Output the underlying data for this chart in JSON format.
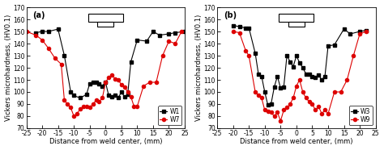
{
  "panel_a": {
    "label": "(a)",
    "W1_x": [
      -22,
      -20,
      -18,
      -15,
      -13,
      -11,
      -10,
      -8,
      -6,
      -5,
      -4,
      -3,
      -2,
      -1,
      0,
      1,
      2,
      3,
      4,
      5,
      6,
      7,
      8,
      10,
      13,
      15,
      17,
      20,
      22,
      25
    ],
    "W1_y": [
      149,
      150,
      150,
      152,
      130,
      100,
      97,
      95,
      98,
      107,
      108,
      108,
      107,
      105,
      108,
      97,
      96,
      97,
      95,
      100,
      96,
      98,
      125,
      143,
      142,
      150,
      147,
      148,
      149,
      150
    ],
    "W7_x": [
      -25,
      -22,
      -20,
      -18,
      -16,
      -14,
      -13,
      -12,
      -11,
      -10,
      -9,
      -8,
      -7,
      -6,
      -5,
      -4,
      -3,
      -2,
      -1,
      0,
      1,
      2,
      3,
      4,
      5,
      6,
      7,
      8,
      9,
      10,
      12,
      14,
      16,
      18,
      20,
      22,
      24
    ],
    "W7_y": [
      150,
      147,
      143,
      136,
      128,
      123,
      93,
      90,
      87,
      80,
      82,
      86,
      88,
      88,
      87,
      90,
      93,
      92,
      95,
      108,
      112,
      114,
      111,
      110,
      106,
      104,
      100,
      96,
      88,
      88,
      105,
      108,
      108,
      130,
      142,
      140,
      150
    ],
    "legend": [
      "W1",
      "W7"
    ],
    "xlabel": "Distance from weld center, (mm)",
    "ylabel": "Vickers microhardness, (HV0.1)"
  },
  "panel_b": {
    "label": "(b)",
    "W3_x": [
      -20,
      -18,
      -16,
      -15,
      -13,
      -12,
      -11,
      -10,
      -9,
      -8,
      -7,
      -6,
      -5,
      -4,
      -3,
      -2,
      -1,
      0,
      1,
      2,
      3,
      4,
      5,
      6,
      7,
      8,
      9,
      10,
      12,
      15,
      17,
      20,
      22
    ],
    "W3_y": [
      155,
      154,
      153,
      153,
      132,
      115,
      113,
      100,
      89,
      90,
      104,
      113,
      103,
      104,
      130,
      125,
      121,
      130,
      124,
      120,
      115,
      115,
      113,
      112,
      114,
      110,
      113,
      138,
      139,
      152,
      148,
      150,
      151
    ],
    "W9_x": [
      -20,
      -18,
      -16,
      -15,
      -13,
      -12,
      -11,
      -10,
      -9,
      -8,
      -7,
      -6,
      -5,
      -4,
      -3,
      -2,
      -1,
      0,
      1,
      2,
      3,
      4,
      5,
      6,
      7,
      8,
      9,
      10,
      12,
      14,
      16,
      18,
      20,
      22
    ],
    "W9_y": [
      150,
      149,
      134,
      130,
      100,
      97,
      95,
      85,
      84,
      83,
      80,
      83,
      76,
      85,
      87,
      90,
      95,
      105,
      110,
      100,
      95,
      92,
      90,
      85,
      88,
      82,
      85,
      82,
      100,
      100,
      110,
      130,
      148,
      150
    ],
    "legend": [
      "W3",
      "W9"
    ],
    "xlabel": "Distance from weld center, (mm)",
    "ylabel": "Vickers microhardness, (HV0.1)"
  },
  "ylim": [
    70,
    170
  ],
  "xlim": [
    -25,
    25
  ],
  "yticks": [
    70,
    80,
    90,
    100,
    110,
    120,
    130,
    140,
    150,
    160,
    170
  ],
  "xticks": [
    -25,
    -20,
    -15,
    -10,
    -5,
    0,
    5,
    10,
    15,
    20,
    25
  ],
  "xticklabels": [
    "-25",
    "-20",
    "-15",
    "-10",
    "-5",
    "0",
    "5",
    "10",
    "15",
    "20",
    "25"
  ],
  "black_color": "#000000",
  "red_color": "#dd0000",
  "marker_black": "s",
  "marker_red": "o",
  "line_width": 0.8,
  "marker_size": 3,
  "font_size_label": 6,
  "font_size_tick": 5.5,
  "font_size_legend": 5.5,
  "font_size_panel": 7
}
